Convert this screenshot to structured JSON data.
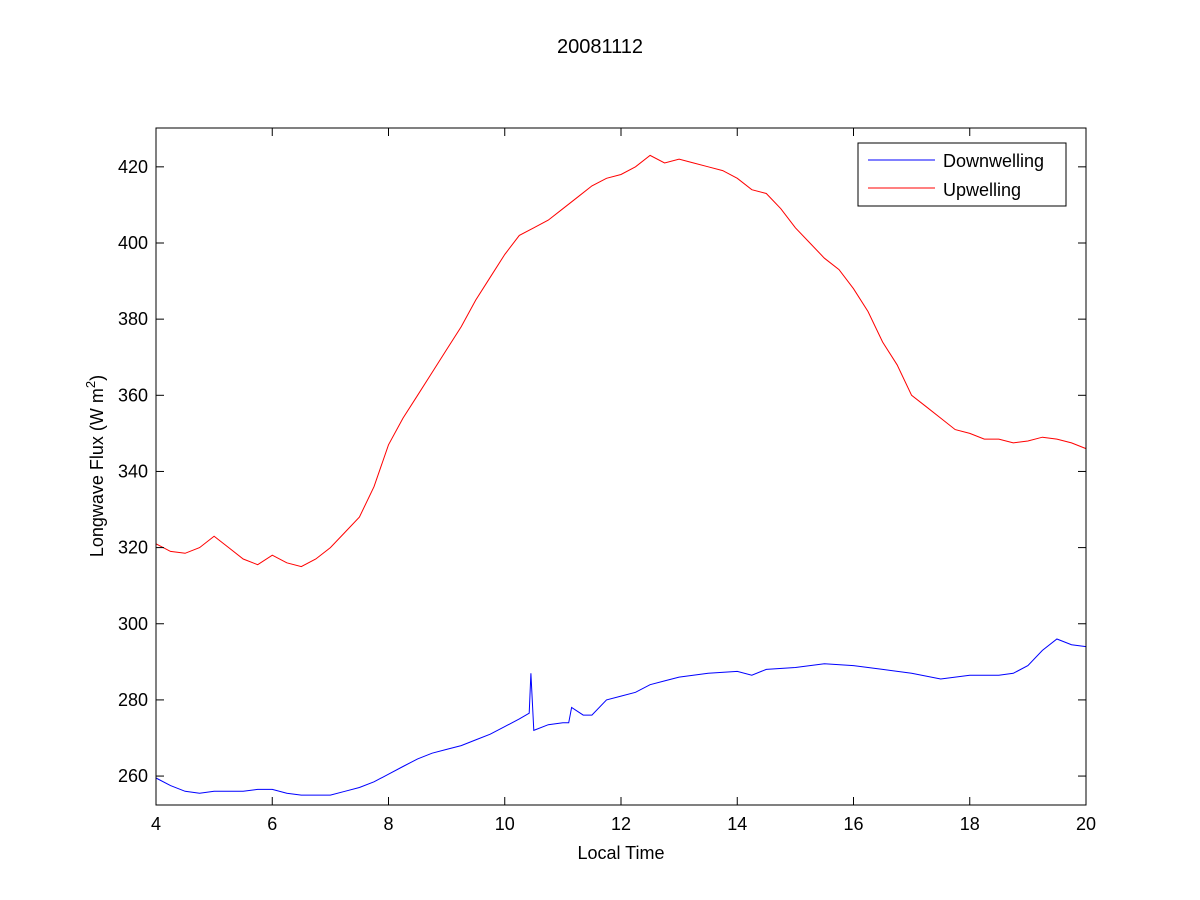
{
  "chart_data": {
    "type": "line",
    "title": "20081112",
    "xlabel": "Local Time",
    "ylabel": "Longwave Flux (W m",
    "ylabel_superscript": "2",
    "ylabel_close": ")",
    "xlim": [
      4,
      20
    ],
    "ylim": [
      252.4,
      430.2
    ],
    "xticks": [
      4,
      6,
      8,
      10,
      12,
      14,
      16,
      18,
      20
    ],
    "yticks": [
      260,
      280,
      300,
      320,
      340,
      360,
      380,
      400,
      420
    ],
    "grid": false,
    "legend_position": "top-right",
    "series": [
      {
        "name": "Downwelling",
        "color": "#0000ff",
        "x": [
          4.0,
          4.25,
          4.5,
          4.75,
          5.0,
          5.5,
          5.75,
          6.0,
          6.25,
          6.5,
          6.75,
          7.0,
          7.25,
          7.5,
          7.75,
          8.0,
          8.25,
          8.5,
          8.75,
          9.0,
          9.25,
          9.5,
          9.75,
          10.0,
          10.25,
          10.42,
          10.45,
          10.5,
          10.75,
          11.0,
          11.1,
          11.15,
          11.35,
          11.5,
          11.75,
          12.0,
          12.25,
          12.5,
          12.75,
          13.0,
          13.5,
          14.0,
          14.25,
          14.5,
          15.0,
          15.5,
          16.0,
          16.5,
          17.0,
          17.5,
          18.0,
          18.5,
          18.75,
          19.0,
          19.25,
          19.5,
          19.75,
          20.0
        ],
        "y": [
          259.5,
          257.5,
          256,
          255.5,
          256,
          256,
          256.5,
          256.5,
          255.5,
          255,
          255,
          255,
          256,
          257,
          258.5,
          260.5,
          262.5,
          264.5,
          266,
          267,
          268,
          269.5,
          271,
          273,
          275,
          276.5,
          287,
          272,
          273.5,
          274,
          274,
          278,
          276,
          276,
          280,
          281,
          282,
          284,
          285,
          286,
          287,
          287.5,
          286.5,
          288,
          288.5,
          289.5,
          289,
          288,
          287,
          285.5,
          286.5,
          286.5,
          287,
          289,
          293,
          296,
          294.5,
          294
        ]
      },
      {
        "name": "Upwelling",
        "color": "#ff0000",
        "x": [
          4.0,
          4.25,
          4.5,
          4.75,
          5.0,
          5.25,
          5.5,
          5.75,
          6.0,
          6.25,
          6.5,
          6.75,
          7.0,
          7.25,
          7.5,
          7.75,
          8.0,
          8.25,
          8.5,
          8.75,
          9.0,
          9.25,
          9.5,
          9.75,
          10.0,
          10.25,
          10.5,
          10.75,
          11.0,
          11.25,
          11.5,
          11.75,
          12.0,
          12.25,
          12.5,
          12.75,
          13.0,
          13.25,
          13.5,
          13.75,
          14.0,
          14.25,
          14.5,
          14.75,
          15.0,
          15.25,
          15.5,
          15.75,
          16.0,
          16.25,
          16.5,
          16.75,
          17.0,
          17.25,
          17.5,
          17.75,
          18.0,
          18.25,
          18.5,
          18.75,
          19.0,
          19.25,
          19.5,
          19.75,
          20.0
        ],
        "y": [
          321,
          319,
          318.5,
          320,
          323,
          320,
          317,
          315.5,
          318,
          316,
          315,
          317,
          320,
          324,
          328,
          336,
          347,
          354,
          360,
          366,
          372,
          378,
          385,
          391,
          397,
          402,
          404,
          406,
          409,
          412,
          415,
          417,
          418,
          420,
          423,
          421,
          422,
          421,
          420,
          419,
          417,
          414,
          413,
          409,
          404,
          400,
          396,
          393,
          388,
          382,
          374,
          368,
          360,
          357,
          354,
          351,
          350,
          348.5,
          348.5,
          347.5,
          348,
          349,
          348.5,
          347.5,
          346
        ]
      }
    ]
  }
}
